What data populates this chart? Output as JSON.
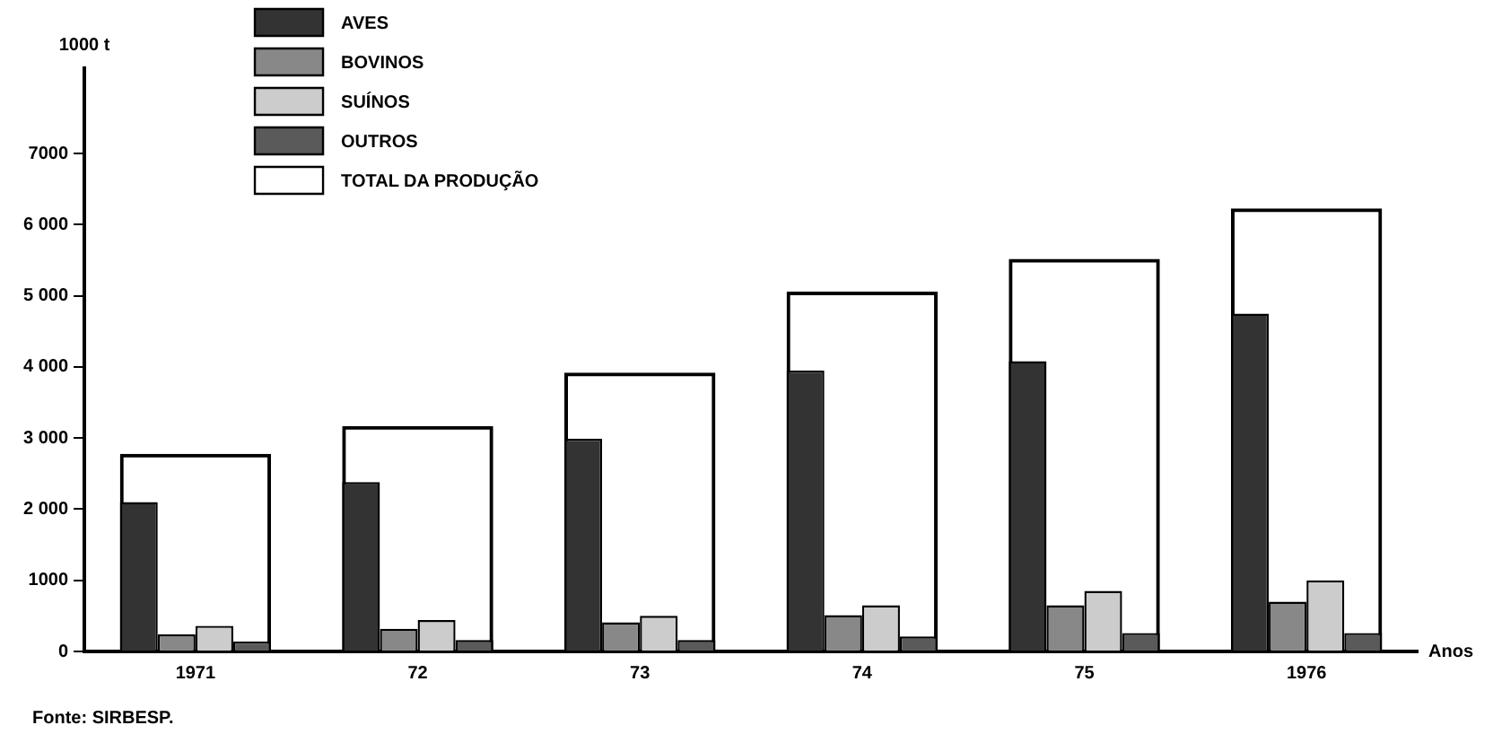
{
  "chart_data": {
    "type": "bar",
    "ylabel": "1000 t",
    "xlabel": "Anos",
    "categories": [
      "1971",
      "72",
      "73",
      "74",
      "75",
      "1976"
    ],
    "series": [
      {
        "name": "AVES",
        "color": "#333333",
        "values": [
          2100,
          2380,
          2990,
          3950,
          4080,
          4750
        ]
      },
      {
        "name": "BOVINOS",
        "color": "#888888",
        "values": [
          240,
          320,
          410,
          510,
          650,
          700
        ]
      },
      {
        "name": "SUÍNOS",
        "color": "#cccccc",
        "values": [
          360,
          440,
          500,
          650,
          850,
          1000
        ]
      },
      {
        "name": "OUTROS",
        "color": "#5a5a5a",
        "values": [
          140,
          160,
          160,
          210,
          260,
          260
        ]
      },
      {
        "name": "TOTAL DA PRODUÇÃO",
        "color": "#000000",
        "values": [
          2780,
          3170,
          3920,
          5060,
          5520,
          6230
        ]
      }
    ],
    "ylim": [
      0,
      8200
    ],
    "yticks": [
      0,
      {
        "value": 1000,
        "label": "1000"
      },
      {
        "value": 2000,
        "label": "2 000"
      },
      {
        "value": 3000,
        "label": "3 000"
      },
      {
        "value": 4000,
        "label": "4 000"
      },
      {
        "value": 5000,
        "label": "5 000"
      },
      {
        "value": 6000,
        "label": "6 000"
      },
      {
        "value": 7000,
        "label": "7000"
      }
    ],
    "grid": false,
    "legend": "top left",
    "annotations": [
      "Fonte: SIRBESP."
    ]
  }
}
